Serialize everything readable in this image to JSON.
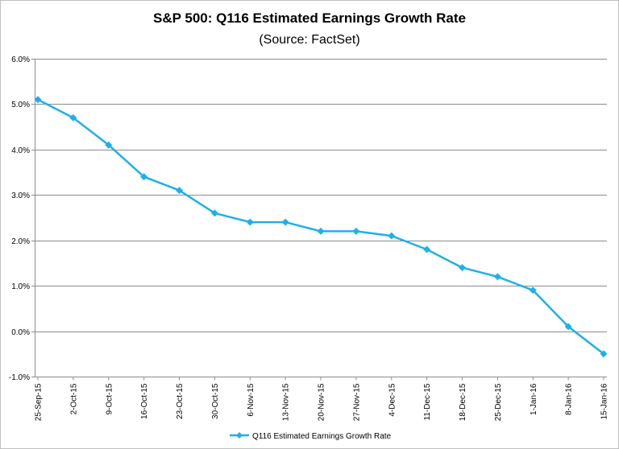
{
  "chart_data": {
    "type": "line",
    "title": "S&P 500: Q116 Estimated Earnings Growth Rate",
    "subtitle": "(Source: FactSet)",
    "xlabel": "",
    "ylabel": "",
    "categories": [
      "25-Sep-15",
      "2-Oct-15",
      "9-Oct-15",
      "16-Oct-15",
      "23-Oct-15",
      "30-Oct-15",
      "6-Nov-15",
      "13-Nov-15",
      "20-Nov-15",
      "27-Nov-15",
      "4-Dec-15",
      "11-Dec-15",
      "18-Dec-15",
      "25-Dec-15",
      "1-Jan-16",
      "8-Jan-16",
      "15-Jan-16"
    ],
    "series": [
      {
        "name": "Q116 Estimated Earnings Growth Rate",
        "color": "#1fb0e8",
        "values": [
          5.1,
          4.7,
          4.1,
          3.4,
          3.1,
          2.6,
          2.4,
          2.4,
          2.2,
          2.2,
          2.1,
          1.8,
          1.4,
          1.2,
          0.9,
          0.1,
          -0.5
        ]
      }
    ],
    "ylim": [
      -1.0,
      6.0
    ],
    "yticks": [
      -1.0,
      0.0,
      1.0,
      2.0,
      3.0,
      4.0,
      5.0,
      6.0
    ],
    "ytick_labels": [
      "-1.0%",
      "0.0%",
      "1.0%",
      "2.0%",
      "3.0%",
      "4.0%",
      "5.0%",
      "6.0%"
    ],
    "grid": true,
    "legend_position": "bottom-center"
  }
}
